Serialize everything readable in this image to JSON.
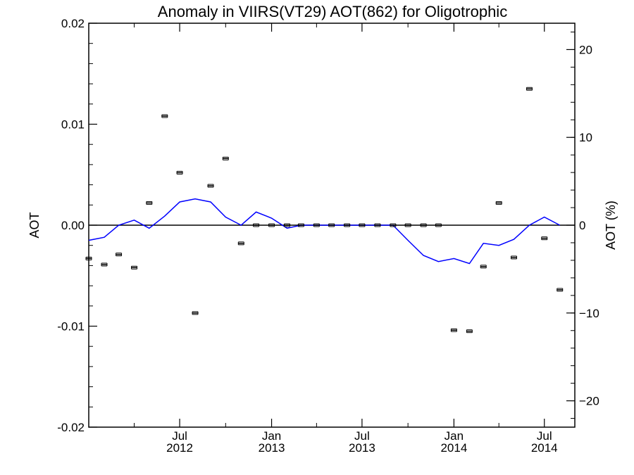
{
  "chart_data": {
    "type": "scatter",
    "title": "Anomaly in VIIRS(VT29) AOT(862) for Oligotrophic",
    "ylabel": "AOT",
    "y2label": "AOT (%)",
    "xlabel": "",
    "ylim": [
      -0.02,
      0.02
    ],
    "y2lim": [
      -23,
      23
    ],
    "xlim": [
      "2012-01-01",
      "2014-08-31"
    ],
    "y_ticks": [
      "0.02",
      "0.01",
      "0.00",
      "-0.01",
      "-0.02"
    ],
    "y2_ticks": [
      "20",
      "10",
      "0",
      "−10",
      "−20"
    ],
    "x_ticks": [
      {
        "date": "2012-07-01",
        "month": "Jul",
        "year": "2012"
      },
      {
        "date": "2013-01-01",
        "month": "Jan",
        "year": "2013"
      },
      {
        "date": "2013-07-01",
        "month": "Jul",
        "year": "2013"
      },
      {
        "date": "2014-01-01",
        "month": "Jan",
        "year": "2014"
      },
      {
        "date": "2014-07-01",
        "month": "Jul",
        "year": "2014"
      }
    ],
    "grid": false,
    "zero_line": true,
    "series": [
      {
        "kind": "points_with_error_bars",
        "color": "#000000",
        "points": [
          {
            "x": "2012-01-01",
            "y": -0.0033
          },
          {
            "x": "2012-02-01",
            "y": -0.0039
          },
          {
            "x": "2012-03-01",
            "y": -0.0029
          },
          {
            "x": "2012-04-01",
            "y": -0.0042
          },
          {
            "x": "2012-05-01",
            "y": 0.0022
          },
          {
            "x": "2012-06-01",
            "y": 0.0108
          },
          {
            "x": "2012-07-01",
            "y": 0.0052
          },
          {
            "x": "2012-08-01",
            "y": -0.0087
          },
          {
            "x": "2012-09-01",
            "y": 0.0039
          },
          {
            "x": "2012-10-01",
            "y": 0.0066
          },
          {
            "x": "2012-11-01",
            "y": -0.0018
          },
          {
            "x": "2012-12-01",
            "y": 0.0
          },
          {
            "x": "2013-01-01",
            "y": 0.0
          },
          {
            "x": "2013-02-01",
            "y": 0.0
          },
          {
            "x": "2013-03-01",
            "y": 0.0
          },
          {
            "x": "2013-04-01",
            "y": 0.0
          },
          {
            "x": "2013-05-01",
            "y": 0.0
          },
          {
            "x": "2013-06-01",
            "y": 0.0
          },
          {
            "x": "2013-07-01",
            "y": 0.0
          },
          {
            "x": "2013-08-01",
            "y": 0.0
          },
          {
            "x": "2013-09-01",
            "y": 0.0
          },
          {
            "x": "2013-10-01",
            "y": 0.0
          },
          {
            "x": "2013-11-01",
            "y": 0.0
          },
          {
            "x": "2013-12-01",
            "y": 0.0
          },
          {
            "x": "2014-01-01",
            "y": -0.0104
          },
          {
            "x": "2014-02-01",
            "y": -0.0105
          },
          {
            "x": "2014-03-01",
            "y": -0.0041
          },
          {
            "x": "2014-04-01",
            "y": 0.0022
          },
          {
            "x": "2014-05-01",
            "y": -0.0032
          },
          {
            "x": "2014-06-01",
            "y": 0.0135
          },
          {
            "x": "2014-07-01",
            "y": -0.0013
          },
          {
            "x": "2014-08-01",
            "y": -0.0064
          }
        ]
      },
      {
        "kind": "line",
        "color": "#0000ff",
        "points": [
          {
            "x": "2012-01-01",
            "y": -0.0015
          },
          {
            "x": "2012-02-01",
            "y": -0.0012
          },
          {
            "x": "2012-03-01",
            "y": 0.0
          },
          {
            "x": "2012-04-01",
            "y": 0.0005
          },
          {
            "x": "2012-05-01",
            "y": -0.0003
          },
          {
            "x": "2012-06-01",
            "y": 0.0009
          },
          {
            "x": "2012-07-01",
            "y": 0.0023
          },
          {
            "x": "2012-08-01",
            "y": 0.0026
          },
          {
            "x": "2012-09-01",
            "y": 0.0023
          },
          {
            "x": "2012-10-01",
            "y": 0.0008
          },
          {
            "x": "2012-11-01",
            "y": 0.0
          },
          {
            "x": "2012-12-01",
            "y": 0.0013
          },
          {
            "x": "2013-01-01",
            "y": 0.0007
          },
          {
            "x": "2013-02-01",
            "y": -0.0003
          },
          {
            "x": "2013-03-01",
            "y": 0.0
          },
          {
            "x": "2013-04-01",
            "y": 0.0
          },
          {
            "x": "2013-05-01",
            "y": 0.0
          },
          {
            "x": "2013-06-01",
            "y": 0.0
          },
          {
            "x": "2013-07-01",
            "y": 0.0
          },
          {
            "x": "2013-08-01",
            "y": 0.0
          },
          {
            "x": "2013-09-01",
            "y": 0.0
          },
          {
            "x": "2013-10-01",
            "y": -0.0015
          },
          {
            "x": "2013-11-01",
            "y": -0.003
          },
          {
            "x": "2013-12-01",
            "y": -0.0036
          },
          {
            "x": "2014-01-01",
            "y": -0.0033
          },
          {
            "x": "2014-02-01",
            "y": -0.0038
          },
          {
            "x": "2014-03-01",
            "y": -0.0018
          },
          {
            "x": "2014-04-01",
            "y": -0.002
          },
          {
            "x": "2014-05-01",
            "y": -0.0014
          },
          {
            "x": "2014-06-01",
            "y": 0.0
          },
          {
            "x": "2014-07-01",
            "y": 0.0008
          },
          {
            "x": "2014-08-01",
            "y": 0.0
          }
        ]
      }
    ]
  }
}
